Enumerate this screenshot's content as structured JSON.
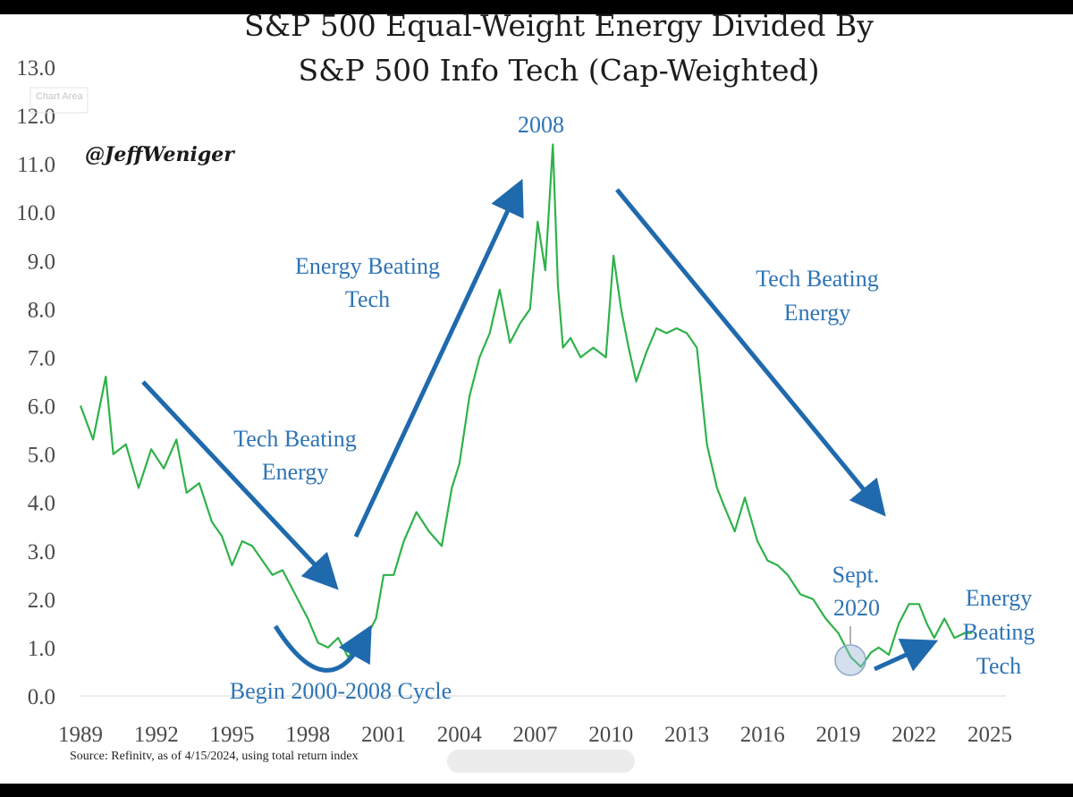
{
  "chart_data": {
    "type": "line",
    "title": "S&P 500 Equal-Weight Energy Divided By",
    "subtitle": "S&P 500 Info Tech (Cap-Weighted)",
    "xlabel": "",
    "ylabel": "",
    "xlim": [
      1989,
      2025
    ],
    "ylim": [
      0,
      13
    ],
    "x_ticks": [
      "1989",
      "1992",
      "1995",
      "1998",
      "2001",
      "2004",
      "2007",
      "2010",
      "2013",
      "2016",
      "2019",
      "2022",
      "2025"
    ],
    "y_ticks": [
      "0.0",
      "1.0",
      "2.0",
      "3.0",
      "4.0",
      "5.0",
      "6.0",
      "7.0",
      "8.0",
      "9.0",
      "10.0",
      "11.0",
      "12.0",
      "13.0"
    ],
    "series": [
      {
        "name": "Energy / Info Tech ratio",
        "color": "#2fb24a",
        "x": [
          1989.0,
          1989.5,
          1990.0,
          1990.3,
          1990.8,
          1991.3,
          1991.8,
          1992.3,
          1992.8,
          1993.2,
          1993.7,
          1994.2,
          1994.6,
          1995.0,
          1995.4,
          1995.8,
          1996.2,
          1996.6,
          1997.0,
          1997.5,
          1998.0,
          1998.4,
          1998.8,
          1999.2,
          1999.6,
          2000.0,
          2000.3,
          2000.7,
          2001.0,
          2001.4,
          2001.8,
          2002.3,
          2002.8,
          2003.3,
          2003.7,
          2004.0,
          2004.4,
          2004.8,
          2005.2,
          2005.6,
          2006.0,
          2006.4,
          2006.8,
          2007.1,
          2007.4,
          2007.7,
          2007.9,
          2008.1,
          2008.4,
          2008.8,
          2009.3,
          2009.8,
          2010.1,
          2010.4,
          2010.7,
          2011.0,
          2011.4,
          2011.8,
          2012.2,
          2012.6,
          2013.0,
          2013.4,
          2013.8,
          2014.2,
          2014.5,
          2014.9,
          2015.3,
          2015.8,
          2016.2,
          2016.6,
          2017.0,
          2017.5,
          2018.0,
          2018.5,
          2019.0,
          2019.5,
          2019.9,
          2020.3,
          2020.6,
          2021.0,
          2021.4,
          2021.8,
          2022.2,
          2022.5,
          2022.8,
          2023.2,
          2023.6,
          2024.0,
          2024.3
        ],
        "values": [
          6.0,
          5.3,
          6.6,
          5.0,
          5.2,
          4.3,
          5.1,
          4.7,
          5.3,
          4.2,
          4.4,
          3.6,
          3.3,
          2.7,
          3.2,
          3.1,
          2.8,
          2.5,
          2.6,
          2.1,
          1.6,
          1.1,
          1.0,
          1.2,
          0.8,
          1.1,
          1.2,
          1.6,
          2.5,
          2.5,
          3.2,
          3.8,
          3.4,
          3.1,
          4.3,
          4.8,
          6.2,
          7.0,
          7.5,
          8.4,
          7.3,
          7.7,
          8.0,
          9.8,
          8.8,
          11.4,
          8.5,
          7.2,
          7.4,
          7.0,
          7.2,
          7.0,
          9.1,
          8.0,
          7.2,
          6.5,
          7.1,
          7.6,
          7.5,
          7.6,
          7.5,
          7.2,
          5.2,
          4.3,
          3.9,
          3.4,
          4.1,
          3.2,
          2.8,
          2.7,
          2.5,
          2.1,
          2.0,
          1.6,
          1.3,
          0.8,
          0.6,
          0.9,
          1.0,
          0.85,
          1.5,
          1.9,
          1.9,
          1.5,
          1.2,
          1.6,
          1.2,
          1.3,
          1.3
        ]
      }
    ],
    "annotations": [
      {
        "text": "2008",
        "color": "#2e74b5"
      },
      {
        "text": "Energy Beating",
        "text2": "Tech",
        "color": "#2e74b5"
      },
      {
        "text": "Tech Beating",
        "text2": "Energy",
        "color": "#2e74b5"
      },
      {
        "text": "Tech Beating",
        "text2": "Energy",
        "color": "#2e74b5"
      },
      {
        "text": "Begin 2000-2008 Cycle",
        "color": "#2e74b5"
      },
      {
        "text": "Sept.",
        "text2": "2020",
        "color": "#2e74b5"
      },
      {
        "text": "Energy",
        "text2": "Beating",
        "text3": "Tech",
        "color": "#2e74b5"
      }
    ],
    "handle": "@JeffWeniger",
    "chart_area_label": "Chart Area",
    "source": "Source: Refinitv, as of 4/15/2024, using total return index"
  },
  "colors": {
    "line": "#2fb24a",
    "arrow": "#1f6aad",
    "annotation": "#2e74b5",
    "axis_text": "#4a4a4a",
    "background": "#ffffff"
  }
}
